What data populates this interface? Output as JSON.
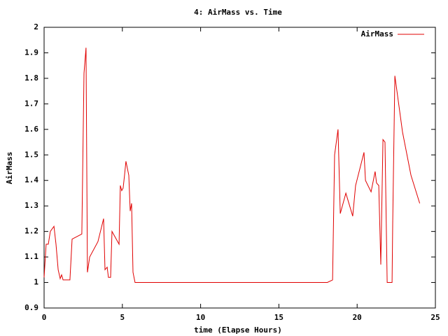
{
  "chart_data": {
    "type": "line",
    "title": "4: AirMass vs. Time",
    "xlabel": "time (Elapse Hours)",
    "ylabel": "AirMass",
    "x": [
      0,
      0.13,
      0.27,
      0.4,
      0.63,
      0.76,
      0.9,
      1.03,
      1.12,
      1.21,
      1.43,
      1.65,
      1.79,
      2.1,
      2.41,
      2.55,
      2.68,
      2.77,
      2.91,
      3.44,
      3.8,
      3.89,
      4.03,
      4.11,
      4.25,
      4.34,
      4.79,
      4.87,
      4.96,
      5.05,
      5.14,
      5.23,
      5.41,
      5.5,
      5.59,
      5.68,
      5.81,
      18.1,
      18.43,
      18.56,
      18.78,
      18.92,
      19.28,
      19.72,
      19.9,
      20.44,
      20.53,
      20.89,
      21.15,
      21.24,
      21.38,
      21.51,
      21.65,
      21.78,
      21.92,
      22.23,
      22.27,
      22.41,
      22.9,
      23.44,
      24
    ],
    "series": [
      {
        "name": "AirMass",
        "color": "#e00000",
        "values": [
          1.02,
          1.15,
          1.15,
          1.2,
          1.22,
          1.15,
          1.05,
          1.015,
          1.03,
          1.01,
          1.01,
          1.01,
          1.17,
          1.18,
          1.19,
          1.82,
          1.92,
          1.04,
          1.1,
          1.16,
          1.25,
          1.05,
          1.06,
          1.02,
          1.02,
          1.2,
          1.15,
          1.38,
          1.36,
          1.37,
          1.42,
          1.475,
          1.42,
          1.28,
          1.31,
          1.04,
          1.0,
          1.0,
          1.01,
          1.5,
          1.6,
          1.27,
          1.35,
          1.26,
          1.38,
          1.51,
          1.4,
          1.355,
          1.435,
          1.39,
          1.38,
          1.07,
          1.56,
          1.55,
          1.0,
          1.0,
          1.23,
          1.81,
          1.59,
          1.42,
          1.31
        ]
      }
    ],
    "xlim": [
      0,
      25
    ],
    "xticks": [
      0,
      5,
      10,
      15,
      20,
      25
    ],
    "ylim": [
      0.9,
      2
    ],
    "yticks": [
      0.9,
      1,
      1.1,
      1.2,
      1.3,
      1.4,
      1.5,
      1.6,
      1.7,
      1.8,
      1.9,
      2
    ],
    "legend": "top-right"
  }
}
